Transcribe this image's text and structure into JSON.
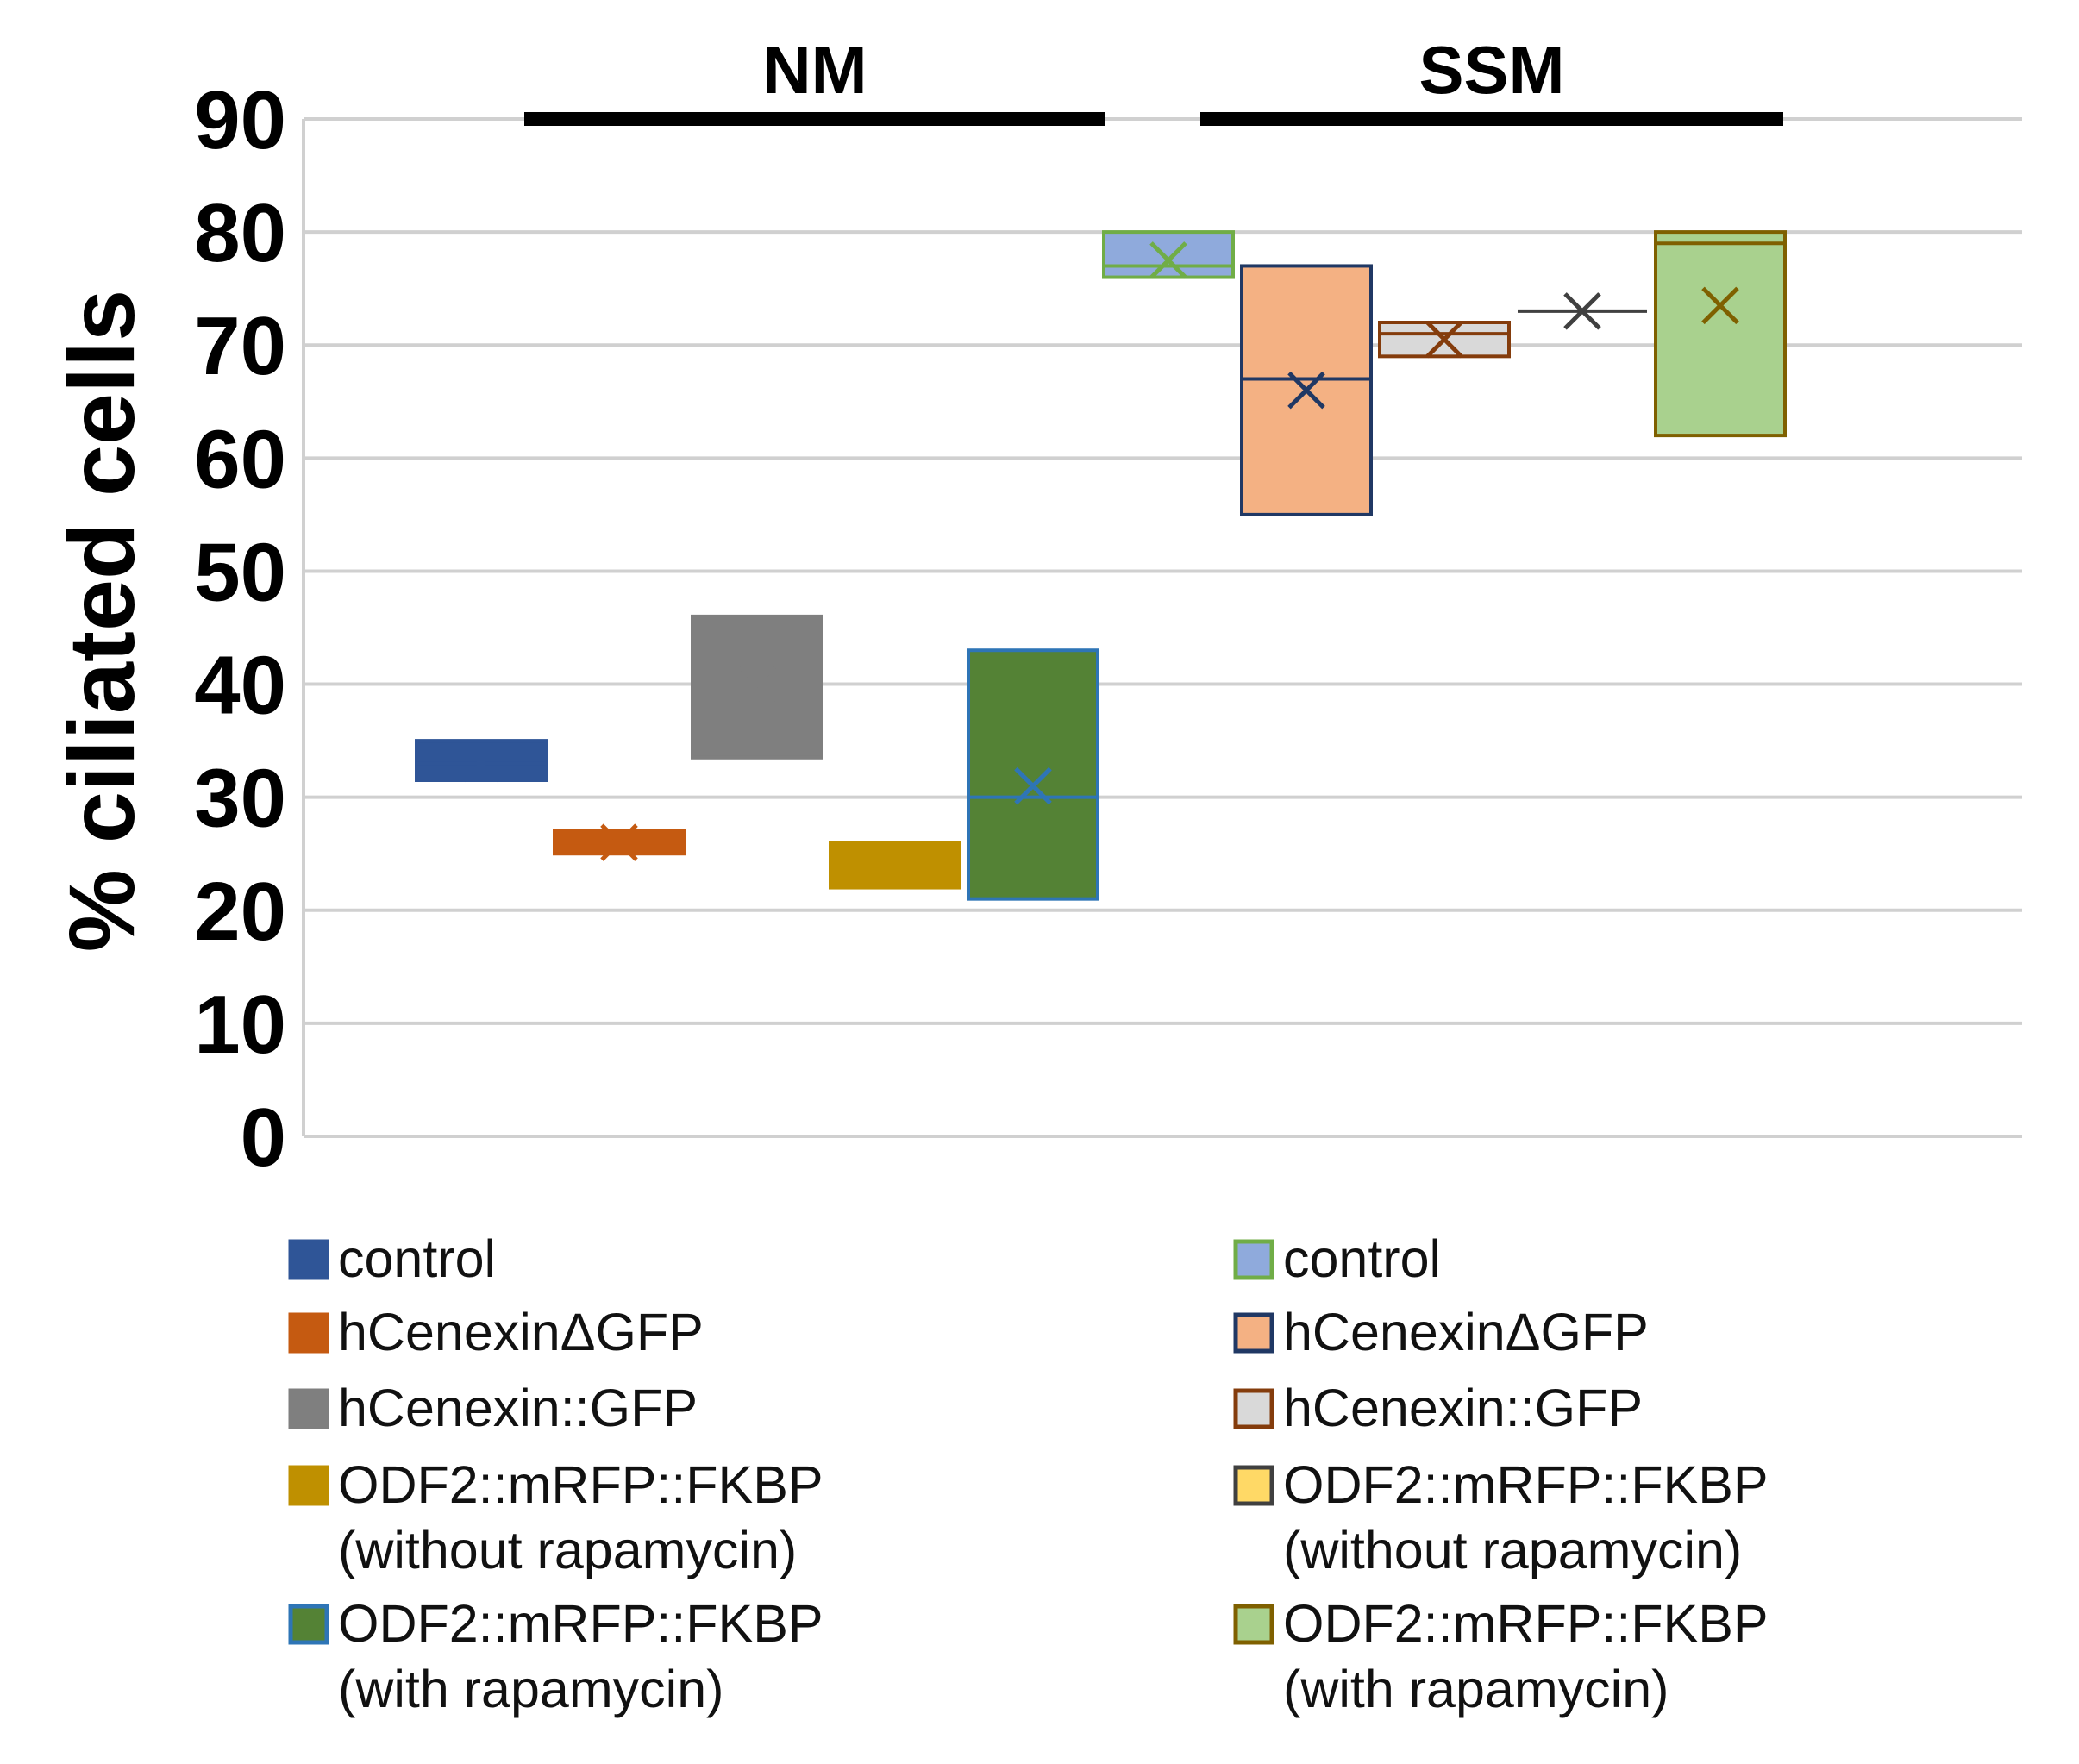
{
  "chart_data": {
    "type": "box",
    "title": "",
    "xlabel": "",
    "ylabel": "% ciliated cells",
    "ylim": [
      0,
      90
    ],
    "yticks": [
      0,
      10,
      20,
      30,
      40,
      50,
      60,
      70,
      80,
      90
    ],
    "grid": true,
    "groups": [
      {
        "label": "NM",
        "series": [
          {
            "name": "control",
            "fill": "#2f5597",
            "stroke": "#2f5597",
            "q1": 31.5,
            "median": 33,
            "q3": 35,
            "mean": 33,
            "legend": [
              "control"
            ]
          },
          {
            "name": "hCenexinΔGFP",
            "fill": "#c55a11",
            "stroke": "#c55a11",
            "q1": 25,
            "median": 26,
            "q3": 27,
            "mean": 26,
            "legend": [
              "hCenexinΔGFP"
            ]
          },
          {
            "name": "hCenexin::GFP",
            "fill": "#7f7f7f",
            "stroke": "#7f7f7f",
            "q1": 33.5,
            "median": 40,
            "q3": 46,
            "mean": 40,
            "legend": [
              "hCenexin::GFP"
            ]
          },
          {
            "name": "ODF2::mRFP::FKBP (without rapamycin)",
            "fill": "#bf9000",
            "stroke": "#bf9000",
            "q1": 22,
            "median": 25,
            "q3": 26,
            "mean": 24,
            "legend": [
              "ODF2::mRFP::FKBP",
              "(without rapamycin)"
            ]
          },
          {
            "name": "ODF2::mRFP::FKBP (with rapamycin)",
            "fill": "#548235",
            "stroke": "#2e75b6",
            "q1": 21,
            "median": 30,
            "q3": 43,
            "mean": 31,
            "legend": [
              "ODF2::mRFP::FKBP",
              "(with rapamycin)"
            ]
          }
        ]
      },
      {
        "label": "SSM",
        "series": [
          {
            "name": "control",
            "fill": "#8faadc",
            "stroke": "#70ad47",
            "q1": 76,
            "median": 77,
            "q3": 80,
            "mean": 77.5,
            "legend": [
              "control"
            ]
          },
          {
            "name": "hCenexinΔGFP",
            "fill": "#f4b183",
            "stroke": "#203864",
            "q1": 55,
            "median": 67,
            "q3": 77,
            "mean": 66,
            "legend": [
              "hCenexinΔGFP"
            ]
          },
          {
            "name": "hCenexin::GFP",
            "fill": "#d9d9d9",
            "stroke": "#843c0c",
            "q1": 69,
            "median": 71,
            "q3": 72,
            "mean": 70.5,
            "legend": [
              "hCenexin::GFP"
            ]
          },
          {
            "name": "ODF2::mRFP::FKBP (without rapamycin)",
            "fill": "#ffd966",
            "stroke": "#404040",
            "q1": 73,
            "median": 73,
            "q3": 73,
            "mean": 73,
            "legend": [
              "ODF2::mRFP::FKBP",
              "(without rapamycin)"
            ]
          },
          {
            "name": "ODF2::mRFP::FKBP (with rapamycin)",
            "fill": "#a9d18e",
            "stroke": "#7f6000",
            "q1": 62,
            "median": 79,
            "q3": 80,
            "mean": 73.5,
            "legend": [
              "ODF2::mRFP::FKBP",
              "(with rapamycin)"
            ]
          }
        ]
      }
    ]
  }
}
